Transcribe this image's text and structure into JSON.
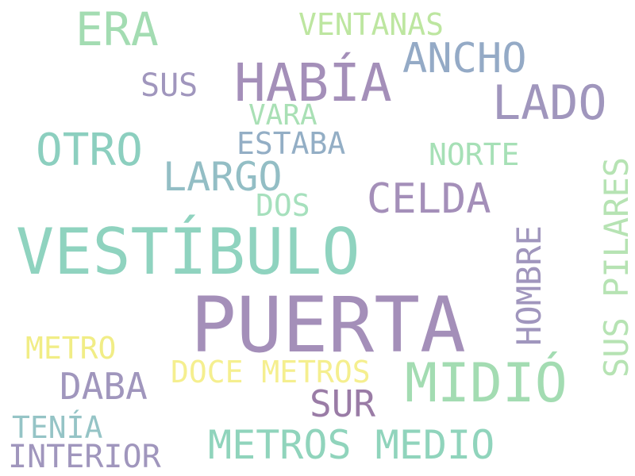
{
  "words": [
    {
      "text": "PUERTA",
      "color": "#a48fb9"
    },
    {
      "text": "VESTÍBULO",
      "color": "#8fd3bf"
    },
    {
      "text": "HABÍA",
      "color": "#a48fb9"
    },
    {
      "text": "MIDIÓ",
      "color": "#a3dcb2"
    },
    {
      "text": "ERA",
      "color": "#a3dcb2"
    },
    {
      "text": "LADO",
      "color": "#a096bd"
    },
    {
      "text": "ANCHO",
      "color": "#94aac6"
    },
    {
      "text": "OTRO",
      "color": "#8ccfbf"
    },
    {
      "text": "CELDA",
      "color": "#a48fb9"
    },
    {
      "text": "LARGO",
      "color": "#93bec5"
    },
    {
      "text": "METROS MEDIO",
      "color": "#90d4bc"
    },
    {
      "text": "DABA",
      "color": "#a096bd"
    },
    {
      "text": "SUR",
      "color": "#9a7ca6"
    },
    {
      "text": "INTERIOR",
      "color": "#a096bd"
    },
    {
      "text": "DOCE METROS",
      "color": "#f5ef8f"
    },
    {
      "text": "METRO",
      "color": "#f1ed86"
    },
    {
      "text": "TENÍA",
      "color": "#95c4c6"
    },
    {
      "text": "VENTANAS",
      "color": "#bde6a0"
    },
    {
      "text": "SUS",
      "color": "#a096bd"
    },
    {
      "text": "VARA",
      "color": "#a9e0b5"
    },
    {
      "text": "ESTABA",
      "color": "#93aec5"
    },
    {
      "text": "NORTE",
      "color": "#a6e0b6"
    },
    {
      "text": "DOS",
      "color": "#a6e0bd"
    },
    {
      "text": "HOMBRE",
      "color": "#a096bd"
    },
    {
      "text": "SUS PILARES",
      "color": "#b6e3b3"
    }
  ]
}
